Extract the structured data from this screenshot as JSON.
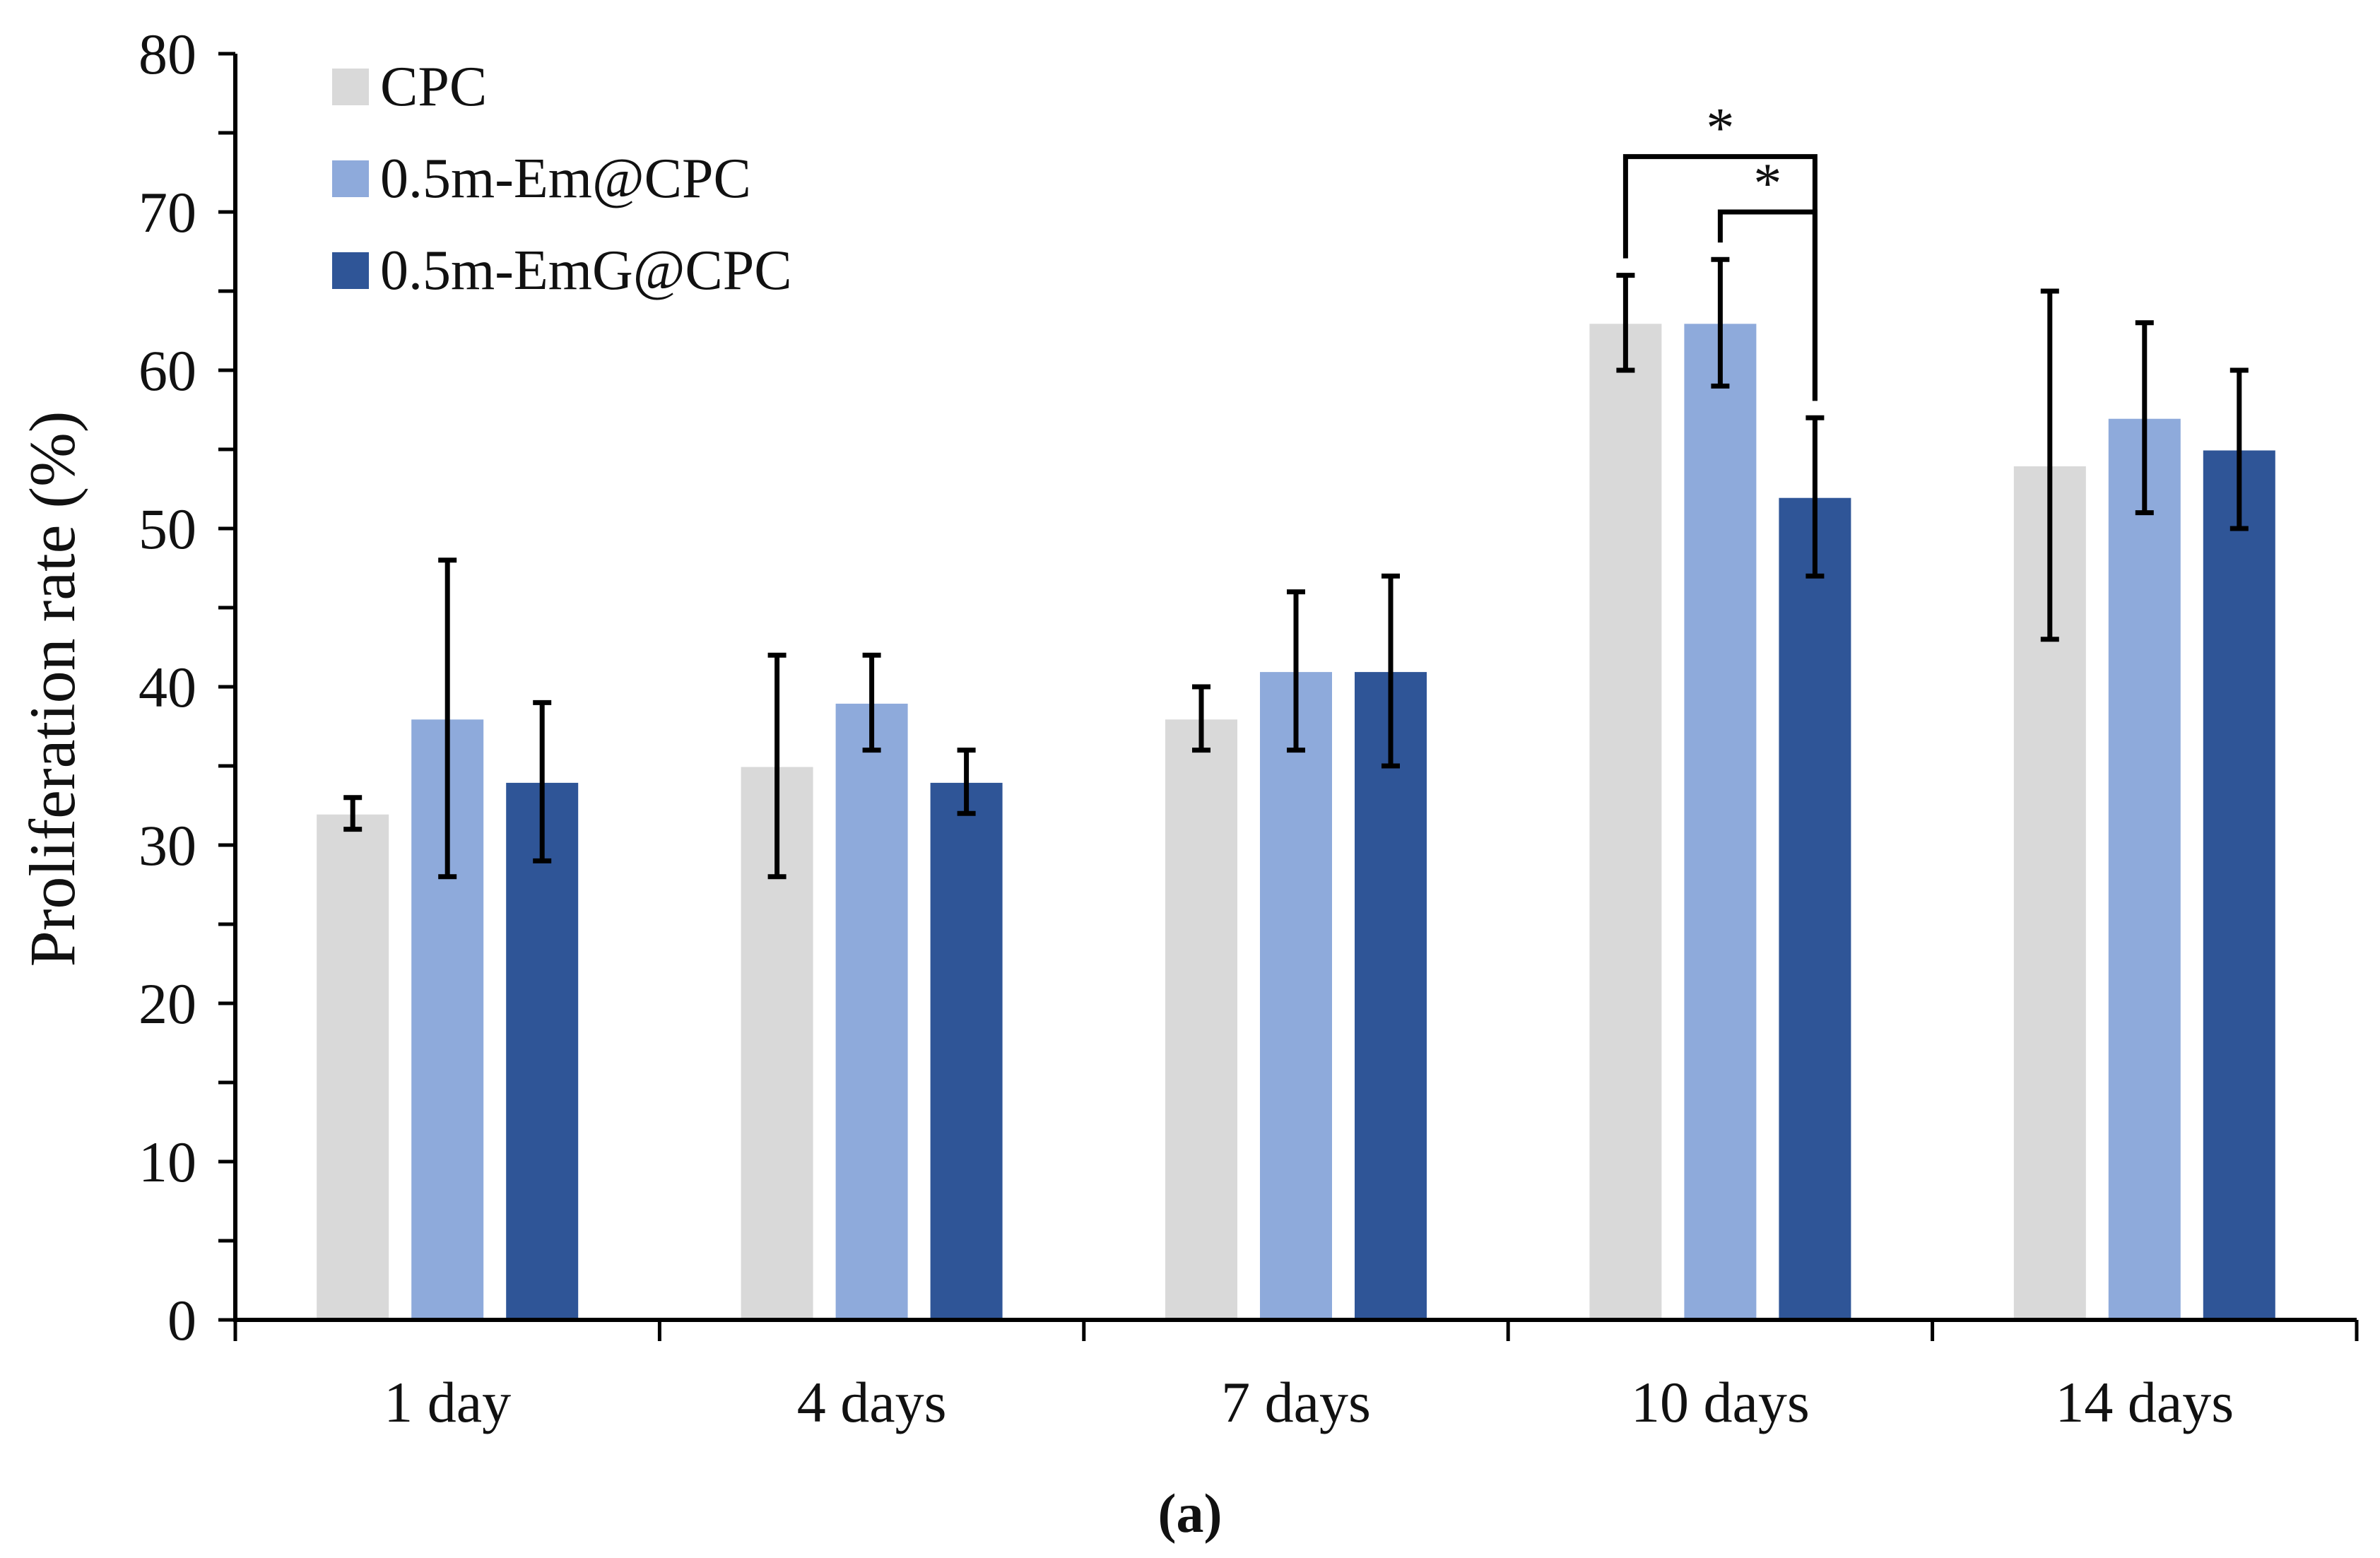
{
  "chart_data": {
    "type": "bar",
    "title": "",
    "xlabel": "",
    "ylabel": "Proliferation rate (%)",
    "ylim": [
      0,
      80
    ],
    "yticks": [
      0,
      10,
      20,
      30,
      40,
      50,
      60,
      70,
      80
    ],
    "yticks_minor_step": 5,
    "grid": false,
    "legend_position": "top-left",
    "categories": [
      "1 day",
      "4 days",
      "7 days",
      "10 days",
      "14 days"
    ],
    "series": [
      {
        "name": "CPC",
        "color": "#d9d9d9",
        "values": [
          32,
          35,
          38,
          63,
          54
        ],
        "err_low": [
          31,
          28,
          36,
          60,
          43
        ],
        "err_high": [
          33,
          42,
          40,
          66,
          65
        ]
      },
      {
        "name": "0.5m-Em@CPC",
        "color": "#8eaadb",
        "values": [
          38,
          39,
          41,
          63,
          57
        ],
        "err_low": [
          28,
          36,
          36,
          59,
          51
        ],
        "err_high": [
          48,
          42,
          46,
          67,
          63
        ]
      },
      {
        "name": "0.5m-EmG@CPC",
        "color": "#2f5597",
        "values": [
          34,
          34,
          41,
          52,
          55
        ],
        "err_low": [
          29,
          32,
          35,
          47,
          50
        ],
        "err_high": [
          39,
          36,
          47,
          57,
          60
        ]
      }
    ],
    "significance": [
      {
        "category": "10 days",
        "from_series": 0,
        "to_series": 2,
        "level": 73.5,
        "label": "*"
      },
      {
        "category": "10 days",
        "from_series": 1,
        "to_series": 2,
        "level": 70.0,
        "label": "*"
      }
    ],
    "panel_label": "(a)"
  }
}
